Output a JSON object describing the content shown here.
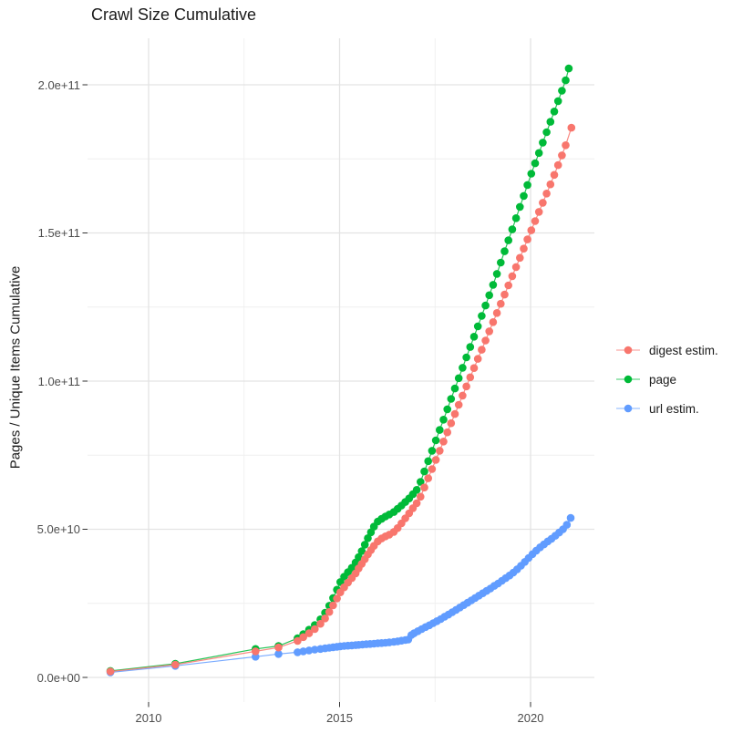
{
  "title": "Crawl Size Cumulative",
  "ylabel": "Pages / Unique Items Cumulative",
  "legend": {
    "items": [
      {
        "label": "digest estim.",
        "color": "#F8766D"
      },
      {
        "label": "page",
        "color": "#00BA38"
      },
      {
        "label": "url estim.",
        "color": "#619CFF"
      }
    ]
  },
  "chart_data": {
    "type": "line",
    "title": "Crawl Size Cumulative",
    "xlabel": "",
    "ylabel": "Pages / Unique Items Cumulative",
    "grid": "major+minor",
    "legend_position": "right",
    "value_unit": 1000000000.0,
    "xlim": [
      2008.4,
      2021.7
    ],
    "ylim": [
      -10000000000.0,
      216000000000.0
    ],
    "x_ticks": [
      2010,
      2015,
      2020
    ],
    "x_tick_labels": [
      "2010",
      "2015",
      "2020"
    ],
    "x_minor_ticks": [
      2012.5,
      2017.5
    ],
    "y_ticks": [
      0,
      50,
      100,
      150,
      200
    ],
    "y_tick_labels": [
      "0.0e+00",
      "5.0e+10",
      "1.0e+11",
      "1.5e+11",
      "2.0e+11"
    ],
    "y_minor_ticks": [
      25,
      75,
      125,
      175
    ],
    "series": [
      {
        "name": "page",
        "color": "#00BA38",
        "points": [
          [
            2009.0,
            2.2
          ],
          [
            2010.7,
            4.6
          ],
          [
            2012.8,
            9.6
          ],
          [
            2013.4,
            10.6
          ],
          [
            2013.9,
            13.2
          ],
          [
            2014.05,
            14.6
          ],
          [
            2014.2,
            16.1
          ],
          [
            2014.35,
            17.7
          ],
          [
            2014.5,
            19.6
          ],
          [
            2014.62,
            21.8
          ],
          [
            2014.73,
            24.2
          ],
          [
            2014.83,
            26.8
          ],
          [
            2014.93,
            29.6
          ],
          [
            2015.02,
            32.2
          ],
          [
            2015.12,
            34.0
          ],
          [
            2015.22,
            35.5
          ],
          [
            2015.32,
            37.0
          ],
          [
            2015.42,
            38.8
          ],
          [
            2015.5,
            40.6
          ],
          [
            2015.58,
            42.6
          ],
          [
            2015.66,
            44.8
          ],
          [
            2015.74,
            47.0
          ],
          [
            2015.82,
            49.0
          ],
          [
            2015.9,
            50.9
          ],
          [
            2016.0,
            52.6
          ],
          [
            2016.1,
            53.5
          ],
          [
            2016.2,
            54.3
          ],
          [
            2016.3,
            55.0
          ],
          [
            2016.42,
            55.8
          ],
          [
            2016.52,
            56.9
          ],
          [
            2016.62,
            58.0
          ],
          [
            2016.72,
            59.2
          ],
          [
            2016.82,
            60.4
          ],
          [
            2016.92,
            61.8
          ],
          [
            2017.02,
            63.3
          ],
          [
            2017.12,
            66.0
          ],
          [
            2017.22,
            69.5
          ],
          [
            2017.32,
            73.0
          ],
          [
            2017.42,
            76.5
          ],
          [
            2017.52,
            80.0
          ],
          [
            2017.62,
            83.5
          ],
          [
            2017.72,
            87.0
          ],
          [
            2017.82,
            90.5
          ],
          [
            2017.92,
            94.0
          ],
          [
            2018.02,
            97.5
          ],
          [
            2018.12,
            101.0
          ],
          [
            2018.22,
            104.5
          ],
          [
            2018.32,
            108.0
          ],
          [
            2018.42,
            111.5
          ],
          [
            2018.52,
            115.0
          ],
          [
            2018.62,
            118.5
          ],
          [
            2018.72,
            122.0
          ],
          [
            2018.82,
            125.5
          ],
          [
            2018.92,
            129.0
          ],
          [
            2019.02,
            132.5
          ],
          [
            2019.12,
            136.2
          ],
          [
            2019.22,
            140.0
          ],
          [
            2019.32,
            143.8
          ],
          [
            2019.42,
            147.5
          ],
          [
            2019.52,
            151.2
          ],
          [
            2019.62,
            155.0
          ],
          [
            2019.72,
            158.8
          ],
          [
            2019.82,
            162.5
          ],
          [
            2019.92,
            166.2
          ],
          [
            2020.02,
            170.0
          ],
          [
            2020.12,
            173.5
          ],
          [
            2020.22,
            177.0
          ],
          [
            2020.32,
            180.5
          ],
          [
            2020.42,
            184.0
          ],
          [
            2020.52,
            187.5
          ],
          [
            2020.62,
            191.0
          ],
          [
            2020.72,
            194.5
          ],
          [
            2020.82,
            198.0
          ],
          [
            2020.92,
            201.5
          ],
          [
            2021.0,
            205.5
          ]
        ]
      },
      {
        "name": "url estim.",
        "color": "#619CFF",
        "points": [
          [
            2009.0,
            1.7
          ],
          [
            2010.7,
            3.9
          ],
          [
            2012.8,
            7.0
          ],
          [
            2013.4,
            7.9
          ],
          [
            2013.9,
            8.5
          ],
          [
            2014.05,
            8.8
          ],
          [
            2014.2,
            9.1
          ],
          [
            2014.35,
            9.4
          ],
          [
            2014.5,
            9.6
          ],
          [
            2014.62,
            9.8
          ],
          [
            2014.73,
            10.0
          ],
          [
            2014.83,
            10.2
          ],
          [
            2014.93,
            10.35
          ],
          [
            2015.02,
            10.5
          ],
          [
            2015.12,
            10.6
          ],
          [
            2015.22,
            10.7
          ],
          [
            2015.32,
            10.8
          ],
          [
            2015.42,
            10.9
          ],
          [
            2015.5,
            11.0
          ],
          [
            2015.6,
            11.1
          ],
          [
            2015.7,
            11.2
          ],
          [
            2015.8,
            11.3
          ],
          [
            2015.9,
            11.4
          ],
          [
            2016.0,
            11.5
          ],
          [
            2016.1,
            11.6
          ],
          [
            2016.2,
            11.7
          ],
          [
            2016.3,
            11.8
          ],
          [
            2016.42,
            12.0
          ],
          [
            2016.52,
            12.2
          ],
          [
            2016.62,
            12.4
          ],
          [
            2016.72,
            12.6
          ],
          [
            2016.8,
            12.8
          ],
          [
            2016.88,
            14.3
          ],
          [
            2016.95,
            14.9
          ],
          [
            2017.05,
            15.6
          ],
          [
            2017.15,
            16.3
          ],
          [
            2017.25,
            17.0
          ],
          [
            2017.35,
            17.6
          ],
          [
            2017.45,
            18.3
          ],
          [
            2017.55,
            19.0
          ],
          [
            2017.65,
            19.7
          ],
          [
            2017.75,
            20.5
          ],
          [
            2017.85,
            21.2
          ],
          [
            2017.95,
            22.0
          ],
          [
            2018.05,
            22.8
          ],
          [
            2018.15,
            23.6
          ],
          [
            2018.25,
            24.4
          ],
          [
            2018.35,
            25.2
          ],
          [
            2018.45,
            26.0
          ],
          [
            2018.55,
            26.8
          ],
          [
            2018.65,
            27.6
          ],
          [
            2018.75,
            28.4
          ],
          [
            2018.85,
            29.2
          ],
          [
            2018.95,
            30.0
          ],
          [
            2019.05,
            30.9
          ],
          [
            2019.15,
            31.7
          ],
          [
            2019.25,
            32.6
          ],
          [
            2019.35,
            33.5
          ],
          [
            2019.45,
            34.4
          ],
          [
            2019.55,
            35.4
          ],
          [
            2019.65,
            36.5
          ],
          [
            2019.75,
            37.7
          ],
          [
            2019.85,
            39.0
          ],
          [
            2019.95,
            40.3
          ],
          [
            2020.05,
            41.6
          ],
          [
            2020.15,
            42.8
          ],
          [
            2020.25,
            43.9
          ],
          [
            2020.35,
            44.9
          ],
          [
            2020.45,
            45.9
          ],
          [
            2020.55,
            46.8
          ],
          [
            2020.65,
            47.8
          ],
          [
            2020.75,
            48.9
          ],
          [
            2020.85,
            50.0
          ],
          [
            2020.95,
            51.5
          ],
          [
            2021.05,
            53.8
          ]
        ]
      },
      {
        "name": "digest estim.",
        "color": "#F8766D",
        "points": [
          [
            2009.0,
            2.0
          ],
          [
            2010.7,
            4.3
          ],
          [
            2012.8,
            8.8
          ],
          [
            2013.4,
            10.1
          ],
          [
            2013.9,
            12.3
          ],
          [
            2014.05,
            13.6
          ],
          [
            2014.2,
            14.9
          ],
          [
            2014.35,
            16.3
          ],
          [
            2014.5,
            18.1
          ],
          [
            2014.62,
            19.9
          ],
          [
            2014.73,
            22.1
          ],
          [
            2014.83,
            24.3
          ],
          [
            2014.93,
            26.6
          ],
          [
            2015.02,
            28.7
          ],
          [
            2015.12,
            30.4
          ],
          [
            2015.22,
            32.0
          ],
          [
            2015.32,
            33.5
          ],
          [
            2015.42,
            35.1
          ],
          [
            2015.5,
            36.8
          ],
          [
            2015.58,
            38.3
          ],
          [
            2015.66,
            39.9
          ],
          [
            2015.74,
            41.5
          ],
          [
            2015.82,
            43.0
          ],
          [
            2015.9,
            44.4
          ],
          [
            2016.0,
            45.9
          ],
          [
            2016.1,
            46.9
          ],
          [
            2016.2,
            47.6
          ],
          [
            2016.3,
            48.2
          ],
          [
            2016.42,
            49.1
          ],
          [
            2016.52,
            50.4
          ],
          [
            2016.62,
            52.0
          ],
          [
            2016.72,
            53.7
          ],
          [
            2016.82,
            55.4
          ],
          [
            2016.92,
            57.1
          ],
          [
            2017.02,
            58.8
          ],
          [
            2017.12,
            61.0
          ],
          [
            2017.22,
            64.1
          ],
          [
            2017.32,
            67.2
          ],
          [
            2017.42,
            70.3
          ],
          [
            2017.52,
            73.4
          ],
          [
            2017.62,
            76.5
          ],
          [
            2017.72,
            79.6
          ],
          [
            2017.82,
            82.7
          ],
          [
            2017.92,
            85.8
          ],
          [
            2018.02,
            88.9
          ],
          [
            2018.12,
            92.0
          ],
          [
            2018.22,
            95.1
          ],
          [
            2018.32,
            98.2
          ],
          [
            2018.42,
            101.3
          ],
          [
            2018.52,
            104.4
          ],
          [
            2018.62,
            107.5
          ],
          [
            2018.72,
            110.6
          ],
          [
            2018.82,
            113.7
          ],
          [
            2018.92,
            116.8
          ],
          [
            2019.02,
            119.9
          ],
          [
            2019.12,
            123.0
          ],
          [
            2019.22,
            126.1
          ],
          [
            2019.32,
            129.2
          ],
          [
            2019.42,
            132.3
          ],
          [
            2019.52,
            135.4
          ],
          [
            2019.62,
            138.5
          ],
          [
            2019.72,
            141.6
          ],
          [
            2019.82,
            144.7
          ],
          [
            2019.92,
            147.8
          ],
          [
            2020.02,
            150.9
          ],
          [
            2020.12,
            154.0
          ],
          [
            2020.22,
            157.1
          ],
          [
            2020.32,
            160.2
          ],
          [
            2020.42,
            163.3
          ],
          [
            2020.52,
            166.4
          ],
          [
            2020.62,
            169.6
          ],
          [
            2020.72,
            172.9
          ],
          [
            2020.82,
            176.2
          ],
          [
            2020.92,
            179.6
          ],
          [
            2021.07,
            185.5
          ]
        ]
      }
    ]
  }
}
